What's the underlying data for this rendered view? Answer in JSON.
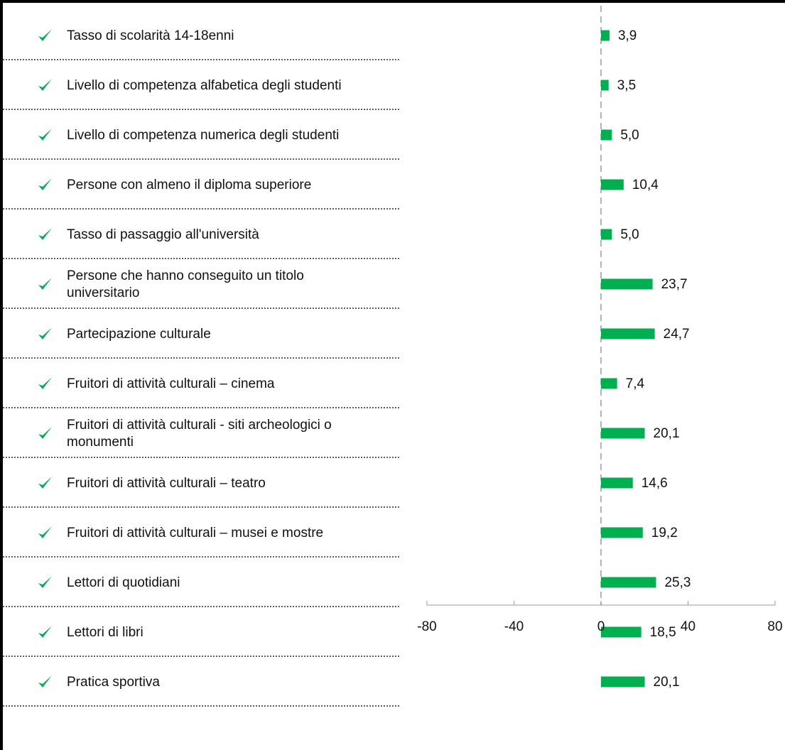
{
  "chart_data": {
    "type": "bar",
    "orientation": "horizontal",
    "categories": [
      "Tasso di scolarità 14-18enni",
      "Livello di competenza alfabetica degli studenti",
      "Livello di competenza numerica degli studenti",
      "Persone con almeno il diploma superiore",
      "Tasso di passaggio all'università",
      "Persone che hanno conseguito un titolo universitario",
      "Partecipazione culturale",
      "Fruitori di attività culturali – cinema",
      "Fruitori di attività culturali - siti archeologici o monumenti",
      "Fruitori di attività culturali – teatro",
      "Fruitori di attività culturali – musei e mostre",
      "Lettori di quotidiani",
      "Lettori di libri",
      "Pratica sportiva"
    ],
    "category_lines": [
      [
        "Tasso di scolarità 14-18enni"
      ],
      [
        "Livello di competenza alfabetica degli studenti"
      ],
      [
        "Livello di competenza numerica degli studenti"
      ],
      [
        "Persone con almeno il diploma superiore"
      ],
      [
        "Tasso di passaggio all'università"
      ],
      [
        "Persone che hanno conseguito un titolo",
        "universitario"
      ],
      [
        "Partecipazione culturale"
      ],
      [
        "Fruitori di attività culturali – cinema"
      ],
      [
        "Fruitori di attività culturali - siti archeologici o",
        "monumenti"
      ],
      [
        "Fruitori di attività culturali – teatro"
      ],
      [
        "Fruitori di attività culturali – musei e mostre"
      ],
      [
        "Lettori di quotidiani"
      ],
      [
        "Lettori di libri"
      ],
      [
        "Pratica sportiva"
      ]
    ],
    "values": [
      3.9,
      3.5,
      5.0,
      10.4,
      5.0,
      23.7,
      24.7,
      7.4,
      20.1,
      14.6,
      19.2,
      25.3,
      18.5,
      20.1
    ],
    "value_labels": [
      "3,9",
      "3,5",
      "5,0",
      "10,4",
      "5,0",
      "23,7",
      "24,7",
      "7,4",
      "20,1",
      "14,6",
      "19,2",
      "25,3",
      "18,5",
      "20,1"
    ],
    "row_marker": "check-icon",
    "xlim": [
      -80,
      80
    ],
    "x_ticks": [
      -80,
      -40,
      0,
      40,
      80
    ],
    "x_tick_labels": [
      "-80",
      "-40",
      "0",
      "40",
      "80"
    ],
    "zero_line": "dashed",
    "grid": false,
    "title": "",
    "xlabel": "",
    "ylabel": ""
  },
  "colors": {
    "bar": "#00b050",
    "check": "#00b050",
    "axis": "#999999",
    "zero_line": "#b4b4b4",
    "separator": "#000000"
  }
}
